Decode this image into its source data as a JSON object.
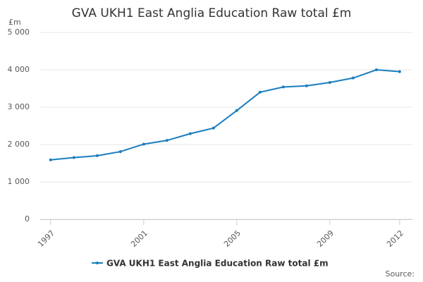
{
  "chart_data": {
    "type": "line",
    "title": "GVA UKH1 East Anglia Education Raw total £m",
    "y_unit": "£m",
    "source": "Source:",
    "x": [
      1997,
      1998,
      1999,
      2000,
      2001,
      2002,
      2003,
      2004,
      2005,
      2006,
      2007,
      2008,
      2009,
      2010,
      2011,
      2012
    ],
    "xlim": [
      1996.55,
      2012.55
    ],
    "xticks": [
      1997,
      2001,
      2005,
      2009,
      2012
    ],
    "ylim": [
      0,
      5000
    ],
    "yticks": [
      0,
      {
        "value": 1000,
        "label": "1 000"
      },
      {
        "value": 2000,
        "label": "2 000"
      },
      {
        "value": 3000,
        "label": "3 000"
      },
      {
        "value": 4000,
        "label": "4 000"
      },
      {
        "value": 5000,
        "label": "5 000"
      }
    ],
    "grid": true,
    "series": [
      {
        "name": "GVA UKH1 East Anglia Education Raw total £m",
        "color": "#1a7dbf",
        "values": [
          1590,
          1650,
          1700,
          1810,
          2010,
          2110,
          2290,
          2440,
          2910,
          3400,
          3540,
          3570,
          3660,
          3780,
          4000,
          3950
        ]
      }
    ]
  }
}
